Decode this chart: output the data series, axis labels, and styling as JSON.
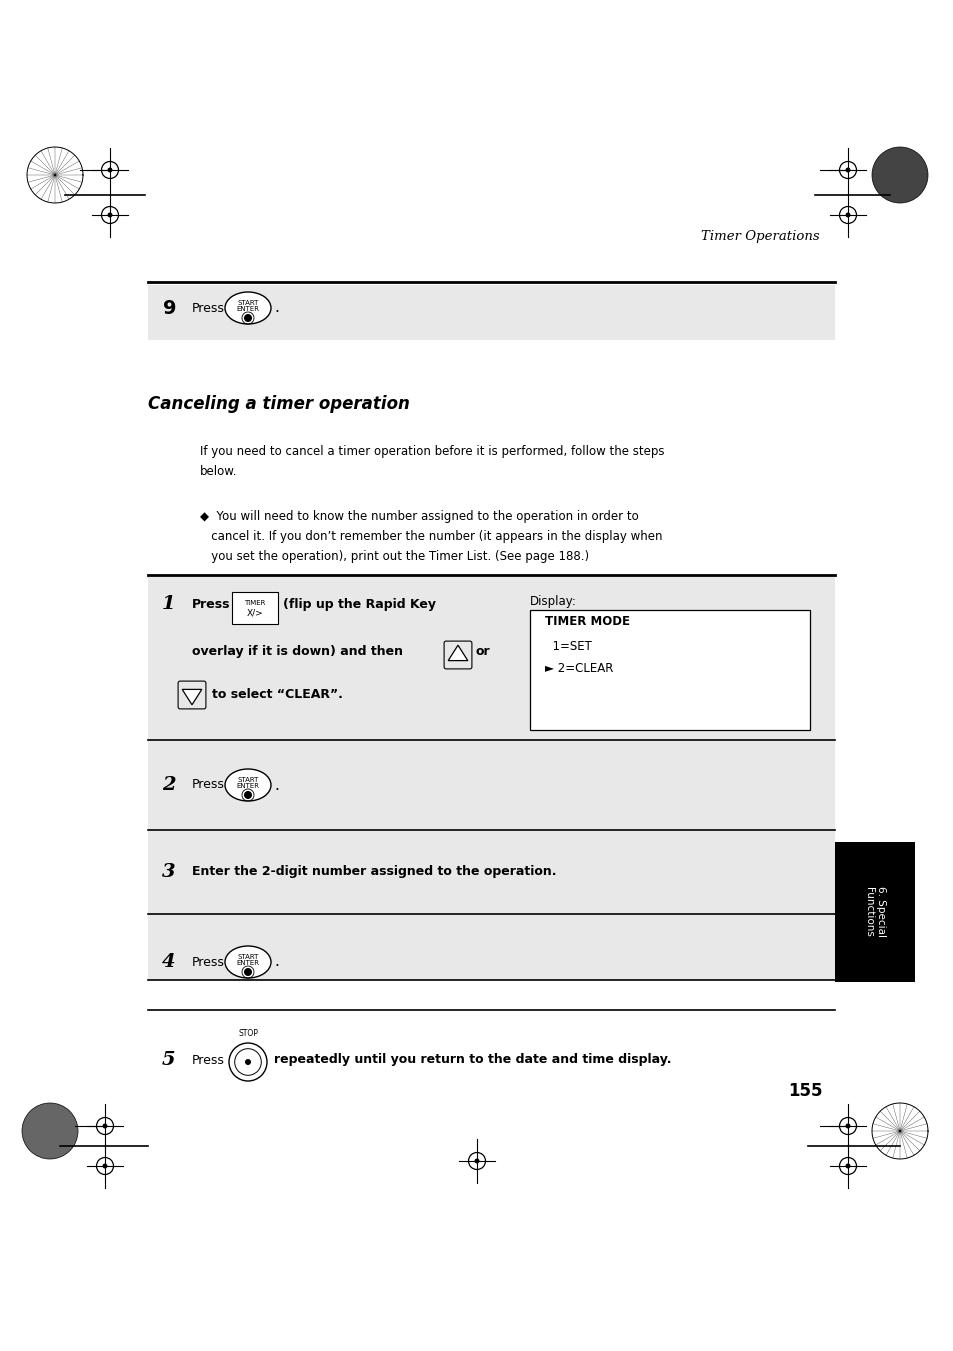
{
  "page_bg": "#ffffff",
  "header_text": "Timer Operations",
  "section_title": "Canceling a timer operation",
  "intro_line1": "If you need to cancel a timer operation before it is performed, follow the steps",
  "intro_line2": "below.",
  "bullet_line1": "◆  You will need to know the number assigned to the operation in order to",
  "bullet_line2": "   cancel it. If you don’t remember the number (it appears in the display when",
  "bullet_line3": "   you set the operation), print out the Timer List. (See page 188.)",
  "display_label": "Display:",
  "display_box_text": "TIMER MODE\n  1=SET\n► 2=CLEAR",
  "step3_text": "Enter the 2-digit number assigned to the operation.",
  "step5_text": "repeatedly until you return to the date and time display.",
  "page_num": "155",
  "tab_text": "6. Special\nFunctions",
  "tab_bg": "#000000",
  "tab_text_color": "#ffffff",
  "gray_bg": "#e8e8e8",
  "white": "#ffffff",
  "black": "#000000"
}
